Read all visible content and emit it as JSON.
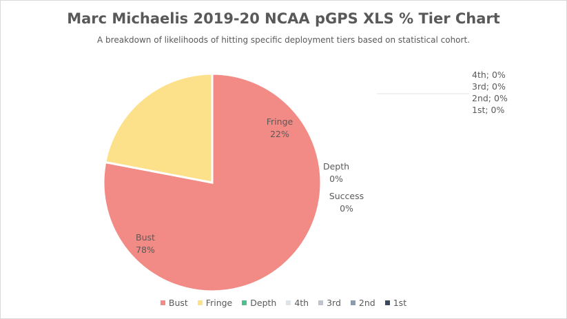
{
  "chart_data": {
    "type": "pie",
    "title": "Marc Michaelis 2019-20 NCAA pGPS XLS % Tier Chart",
    "subtitle": "A breakdown of likelihoods of hitting specific deployment tiers based on statistical cohort.",
    "categories": [
      "Bust",
      "Fringe",
      "Depth",
      "Success",
      "4th",
      "3rd",
      "2nd",
      "1st"
    ],
    "values": [
      78,
      22,
      0,
      0,
      0,
      0,
      0,
      0
    ],
    "value_labels": [
      "78%",
      "22%",
      "0%",
      "0%",
      "0%",
      "0%",
      "0%",
      "0%"
    ],
    "colors": [
      "#f28b86",
      "#fde08a",
      "#4fc08d",
      "#7f9fbf",
      "#dde3e6",
      "#bfc4cc",
      "#8a9bb0",
      "#3b4a5a"
    ],
    "legend": [
      "Bust",
      "Fringe",
      "Depth",
      "4th",
      "3rd",
      "2nd",
      "1st"
    ],
    "legend_colors": [
      "#f28b86",
      "#fde08a",
      "#4fc08d",
      "#dde3e6",
      "#bfc4cc",
      "#8a9bb0",
      "#3b4a5a"
    ],
    "legend_position": "bottom",
    "overlapping_labels": [
      "4th; 0%",
      "3rd; 0%",
      "2nd; 0%",
      "1st; 0%"
    ]
  }
}
